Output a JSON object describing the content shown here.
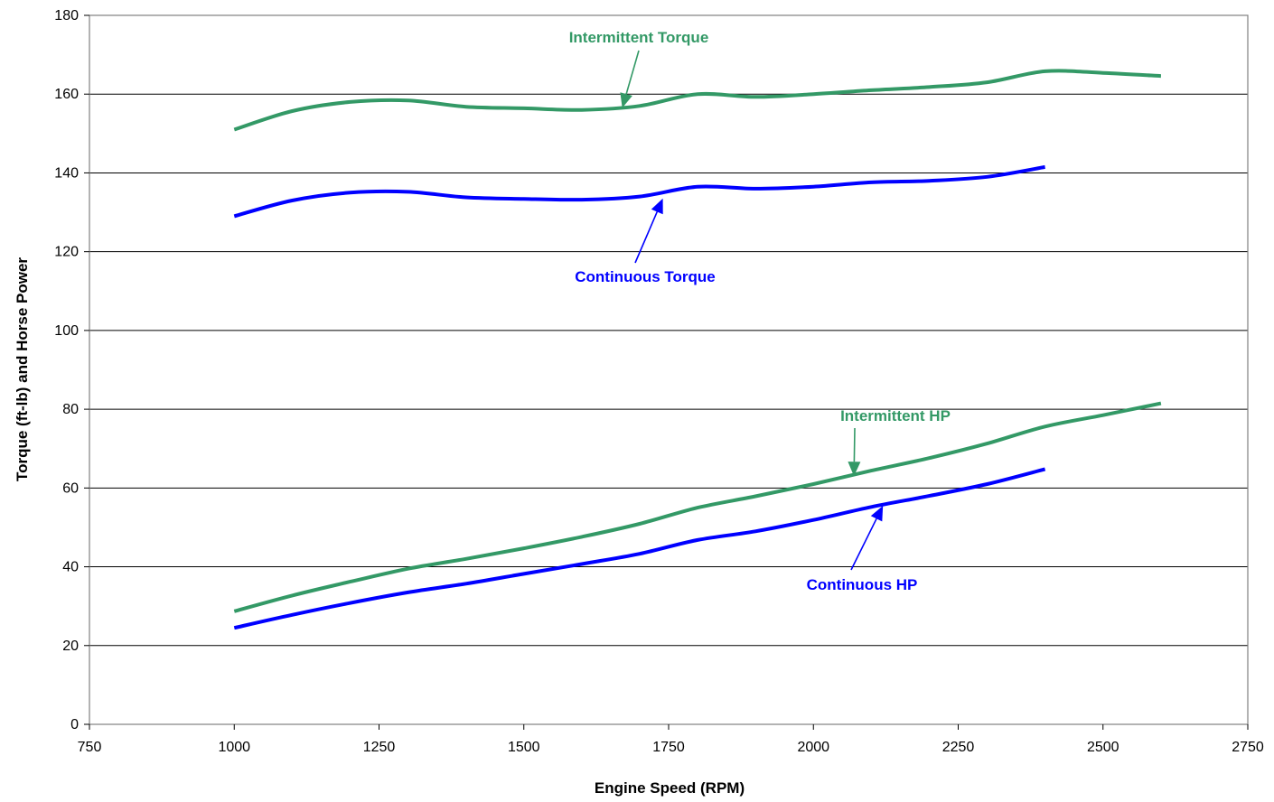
{
  "chart_data": {
    "type": "line",
    "title": "",
    "xlabel": "Engine Speed (RPM)",
    "ylabel": "Torque (ft-lb) and Horse Power",
    "xlim": [
      750,
      2750
    ],
    "ylim": [
      0,
      180
    ],
    "x_ticks": [
      "750",
      "1000",
      "1250",
      "1500",
      "1750",
      "2000",
      "2250",
      "2500",
      "2750"
    ],
    "y_ticks": [
      "0",
      "20",
      "40",
      "60",
      "80",
      "100",
      "120",
      "140",
      "160",
      "180"
    ],
    "grid": "horizontal",
    "legend": "none",
    "colors": {
      "intermittent": "#339966",
      "continuous": "#0000ff"
    },
    "series": [
      {
        "label": "Intermittent Torque",
        "color": "#339966",
        "x": [
          1000,
          1100,
          1200,
          1300,
          1400,
          1500,
          1600,
          1700,
          1800,
          1900,
          2000,
          2100,
          2200,
          2300,
          2400,
          2500,
          2600
        ],
        "y": [
          151,
          155.7,
          158,
          158.4,
          156.8,
          156.4,
          156,
          157,
          160,
          159.3,
          160,
          161,
          161.8,
          163,
          165.8,
          165.4,
          164.6
        ]
      },
      {
        "label": "Continuous Torque",
        "color": "#0000ff",
        "x": [
          1000,
          1100,
          1200,
          1300,
          1400,
          1500,
          1600,
          1700,
          1800,
          1900,
          2000,
          2100,
          2200,
          2300,
          2400
        ],
        "y": [
          129,
          133,
          135,
          135.2,
          133.8,
          133.4,
          133.2,
          134,
          136.5,
          136,
          136.5,
          137.6,
          138,
          139,
          141.5
        ]
      },
      {
        "label": "Intermittent HP",
        "color": "#339966",
        "x": [
          1000,
          1100,
          1200,
          1300,
          1400,
          1500,
          1600,
          1700,
          1800,
          1900,
          2000,
          2100,
          2200,
          2300,
          2400,
          2500,
          2600
        ],
        "y": [
          28.7,
          32.7,
          36.2,
          39.5,
          42,
          44.7,
          47.6,
          50.9,
          55,
          57.9,
          61,
          64.4,
          67.6,
          71.3,
          75.6,
          78.5,
          81.5
        ]
      },
      {
        "label": "Continuous HP",
        "color": "#0000ff",
        "x": [
          1000,
          1100,
          1200,
          1300,
          1400,
          1500,
          1600,
          1700,
          1800,
          1900,
          2000,
          2100,
          2200,
          2300,
          2400
        ],
        "y": [
          24.5,
          27.8,
          30.8,
          33.5,
          35.7,
          38.2,
          40.7,
          43.3,
          46.8,
          49,
          51.9,
          55.2,
          58,
          61,
          64.8
        ]
      }
    ],
    "annotations": [
      {
        "text": "Intermittent Torque",
        "series": "Intermittent Torque",
        "x": 1670,
        "y": 156.5,
        "color": "#339966"
      },
      {
        "text": "Continuous Torque",
        "series": "Continuous Torque",
        "x": 1740,
        "y": 133.5,
        "color": "#0000ff"
      },
      {
        "text": "Intermittent HP",
        "series": "Intermittent HP",
        "x": 2070,
        "y": 63,
        "color": "#339966"
      },
      {
        "text": "Continuous HP",
        "series": "Continuous HP",
        "x": 2120,
        "y": 55.5,
        "color": "#0000ff"
      }
    ]
  }
}
